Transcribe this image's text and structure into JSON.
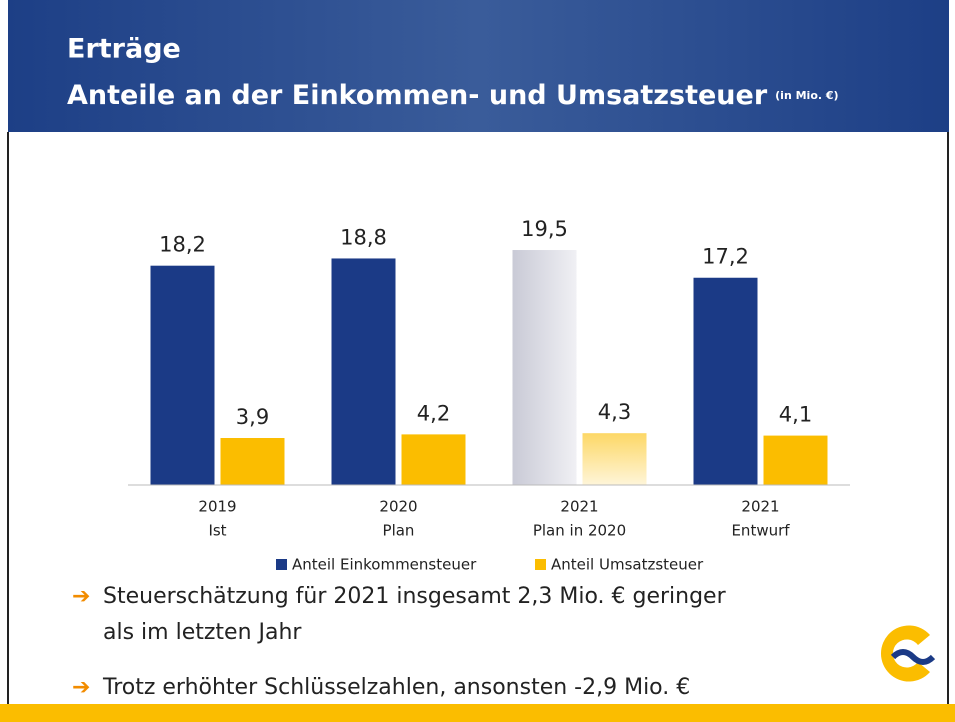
{
  "slide": {
    "title": "Erträge",
    "subtitle": "Anteile an der Einkommen- und Umsatzsteuer",
    "unit_note": "(in Mio. €)",
    "bullets": [
      [
        "Steuerschätzung für 2021 insgesamt 2,3 Mio. € geringer",
        "als im letzten Jahr"
      ],
      [
        "Trotz erhöhter Schlüsselzahlen, ansonsten -2,9 Mio. €"
      ]
    ]
  },
  "chart_data": {
    "type": "bar",
    "categories": [
      [
        "2019",
        "Ist"
      ],
      [
        "2020",
        "Plan"
      ],
      [
        "2021",
        "Plan in 2020"
      ],
      [
        "2021",
        "Entwurf"
      ]
    ],
    "series": [
      {
        "name": "Anteil Einkommensteuer",
        "color": "#1b3a86",
        "values": [
          18.2,
          18.8,
          19.5,
          17.2
        ],
        "value_labels": [
          "18,2",
          "18,8",
          "19,5",
          "17,2"
        ]
      },
      {
        "name": "Anteil Umsatzsteuer",
        "color": "#fbbd00",
        "values": [
          3.9,
          4.2,
          4.3,
          4.1
        ],
        "value_labels": [
          "3,9",
          "4,2",
          "4,3",
          "4,1"
        ]
      }
    ],
    "faded_category": 2,
    "ylim": [
      0,
      20
    ],
    "legend": "bottom"
  }
}
